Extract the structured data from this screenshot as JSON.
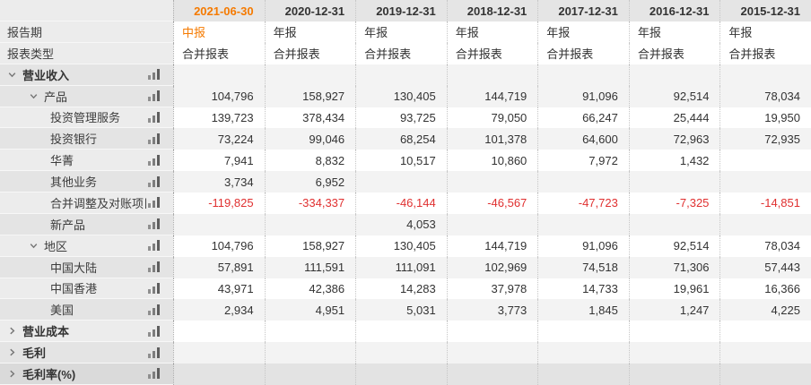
{
  "colors": {
    "accent": "#f57a00",
    "negative": "#e03030"
  },
  "icons": [
    "bar-chart-icon",
    "chevron-down-icon",
    "chevron-right-icon"
  ],
  "header": {
    "corner": "",
    "columns": [
      "2021-06-30",
      "2020-12-31",
      "2019-12-31",
      "2018-12-31",
      "2017-12-31",
      "2016-12-31",
      "2015-12-31"
    ],
    "highlight_col": 0
  },
  "rows": [
    {
      "label": "报告期",
      "level": 1,
      "chevron": null,
      "bold": false,
      "icon": false,
      "align": "left",
      "accent_col": 0,
      "values": [
        "中报",
        "年报",
        "年报",
        "年报",
        "年报",
        "年报",
        "年报"
      ]
    },
    {
      "label": "报表类型",
      "level": 1,
      "chevron": null,
      "bold": false,
      "icon": false,
      "align": "left",
      "accent_col": -1,
      "values": [
        "合并报表",
        "合并报表",
        "合并报表",
        "合并报表",
        "合并报表",
        "合并报表",
        "合并报表"
      ]
    },
    {
      "label": "营业收入",
      "level": 1,
      "chevron": "down",
      "bold": true,
      "icon": true,
      "align": "right",
      "accent_col": -1,
      "values": [
        "",
        "",
        "",
        "",
        "",
        "",
        ""
      ]
    },
    {
      "label": "产品",
      "level": 2,
      "chevron": "down",
      "bold": false,
      "icon": true,
      "align": "right",
      "accent_col": -1,
      "values": [
        "104,796",
        "158,927",
        "130,405",
        "144,719",
        "91,096",
        "92,514",
        "78,034"
      ]
    },
    {
      "label": "投资管理服务",
      "level": 3,
      "chevron": null,
      "bold": false,
      "icon": true,
      "align": "right",
      "accent_col": -1,
      "values": [
        "139,723",
        "378,434",
        "93,725",
        "79,050",
        "66,247",
        "25,444",
        "19,950"
      ]
    },
    {
      "label": "投资银行",
      "level": 3,
      "chevron": null,
      "bold": false,
      "icon": true,
      "align": "right",
      "accent_col": -1,
      "values": [
        "73,224",
        "99,046",
        "68,254",
        "101,378",
        "64,600",
        "72,963",
        "72,935"
      ]
    },
    {
      "label": "华菁",
      "level": 3,
      "chevron": null,
      "bold": false,
      "icon": true,
      "align": "right",
      "accent_col": -1,
      "values": [
        "7,941",
        "8,832",
        "10,517",
        "10,860",
        "7,972",
        "1,432",
        ""
      ]
    },
    {
      "label": "其他业务",
      "level": 3,
      "chevron": null,
      "bold": false,
      "icon": true,
      "align": "right",
      "accent_col": -1,
      "values": [
        "3,734",
        "6,952",
        "",
        "",
        "",
        "",
        ""
      ]
    },
    {
      "label": "合并调整及对账项目",
      "level": 3,
      "chevron": null,
      "bold": false,
      "icon": true,
      "align": "right",
      "accent_col": -1,
      "values": [
        "-119,825",
        "-334,337",
        "-46,144",
        "-46,567",
        "-47,723",
        "-7,325",
        "-14,851"
      ]
    },
    {
      "label": "新产品",
      "level": 3,
      "chevron": null,
      "bold": false,
      "icon": true,
      "align": "right",
      "accent_col": -1,
      "values": [
        "",
        "",
        "4,053",
        "",
        "",
        "",
        ""
      ]
    },
    {
      "label": "地区",
      "level": 2,
      "chevron": "down",
      "bold": false,
      "icon": true,
      "align": "right",
      "accent_col": -1,
      "values": [
        "104,796",
        "158,927",
        "130,405",
        "144,719",
        "91,096",
        "92,514",
        "78,034"
      ]
    },
    {
      "label": "中国大陆",
      "level": 3,
      "chevron": null,
      "bold": false,
      "icon": true,
      "align": "right",
      "accent_col": -1,
      "values": [
        "57,891",
        "111,591",
        "111,091",
        "102,969",
        "74,518",
        "71,306",
        "57,443"
      ]
    },
    {
      "label": "中国香港",
      "level": 3,
      "chevron": null,
      "bold": false,
      "icon": true,
      "align": "right",
      "accent_col": -1,
      "values": [
        "43,971",
        "42,386",
        "14,283",
        "37,978",
        "14,733",
        "19,961",
        "16,366"
      ]
    },
    {
      "label": "美国",
      "level": 3,
      "chevron": null,
      "bold": false,
      "icon": true,
      "align": "right",
      "accent_col": -1,
      "values": [
        "2,934",
        "4,951",
        "5,031",
        "3,773",
        "1,845",
        "1,247",
        "4,225"
      ]
    },
    {
      "label": "营业成本",
      "level": 1,
      "chevron": "right",
      "bold": true,
      "icon": true,
      "align": "right",
      "accent_col": -1,
      "values": [
        "",
        "",
        "",
        "",
        "",
        "",
        ""
      ]
    },
    {
      "label": "毛利",
      "level": 1,
      "chevron": "right",
      "bold": true,
      "icon": true,
      "align": "right",
      "accent_col": -1,
      "values": [
        "",
        "",
        "",
        "",
        "",
        "",
        ""
      ]
    },
    {
      "label": "毛利率(%)",
      "level": 1,
      "chevron": "right",
      "bold": true,
      "icon": true,
      "align": "right",
      "accent_col": -1,
      "values": [
        "",
        "",
        "",
        "",
        "",
        "",
        ""
      ]
    }
  ]
}
